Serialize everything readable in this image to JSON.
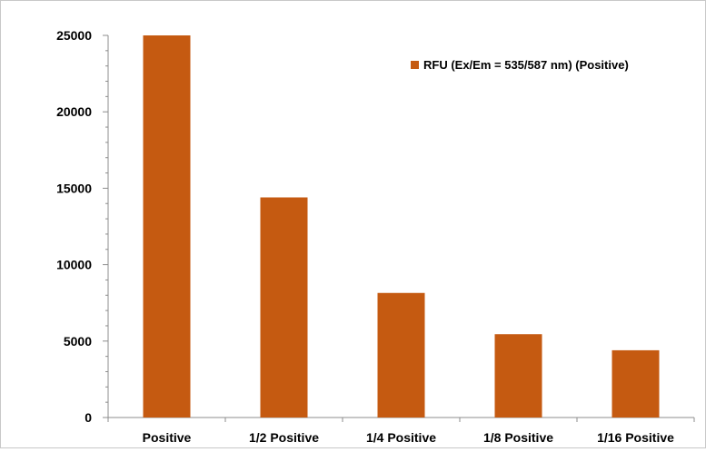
{
  "chart_data": {
    "type": "bar",
    "categories": [
      "Positive",
      "1/2 Positive",
      "1/4 Positive",
      "1/8 Positive",
      "1/16 Positive"
    ],
    "series": [
      {
        "name": "RFU (Ex/Em = 535/587 nm) (Positive)",
        "values": [
          25000,
          14400,
          8150,
          5450,
          4400
        ],
        "color": "#c55a11"
      }
    ],
    "ylim": [
      0,
      25000
    ],
    "yticks": [
      0,
      5000,
      10000,
      15000,
      20000,
      25000
    ],
    "grid": false,
    "legend": "top-right"
  }
}
